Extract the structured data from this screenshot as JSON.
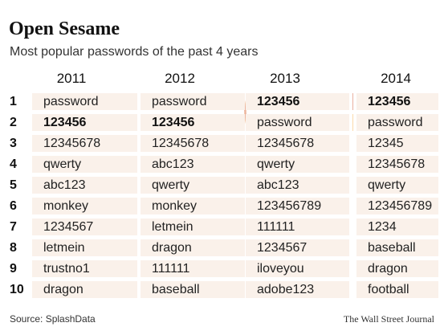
{
  "header": {
    "title": "Open Sesame",
    "subtitle": "Most popular passwords of the past 4 years"
  },
  "chart_data": {
    "type": "table",
    "title": "Open Sesame",
    "subtitle": "Most popular passwords of the past 4 years",
    "columns": [
      "2011",
      "2012",
      "2013",
      "2014"
    ],
    "ranks": [
      "1",
      "2",
      "3",
      "4",
      "5",
      "6",
      "7",
      "8",
      "9",
      "10"
    ],
    "rows": [
      [
        "password",
        "password",
        "123456",
        "123456"
      ],
      [
        "123456",
        "123456",
        "password",
        "password"
      ],
      [
        "12345678",
        "12345678",
        "12345678",
        "12345"
      ],
      [
        "qwerty",
        "abc123",
        "qwerty",
        "12345678"
      ],
      [
        "abc123",
        "qwerty",
        "abc123",
        "qwerty"
      ],
      [
        "monkey",
        "monkey",
        "123456789",
        "123456789"
      ],
      [
        "1234567",
        "letmein",
        "111111",
        "1234"
      ],
      [
        "letmein",
        "dragon",
        "1234567",
        "baseball"
      ],
      [
        "trustno1",
        "111111",
        "iloveyou",
        "dragon"
      ],
      [
        "dragon",
        "baseball",
        "adobe123",
        "football"
      ]
    ],
    "highlight": {
      "password": "#fbd9a9",
      "123456": "#eab09e"
    },
    "bold_values": [
      "123456"
    ]
  },
  "footer": {
    "source": "Source: SplashData",
    "credit": "The Wall Street Journal"
  },
  "colors": {
    "cell_background": "#faf1ea",
    "password_highlight": "#fbd9a9",
    "123456_highlight": "#eab09e"
  }
}
